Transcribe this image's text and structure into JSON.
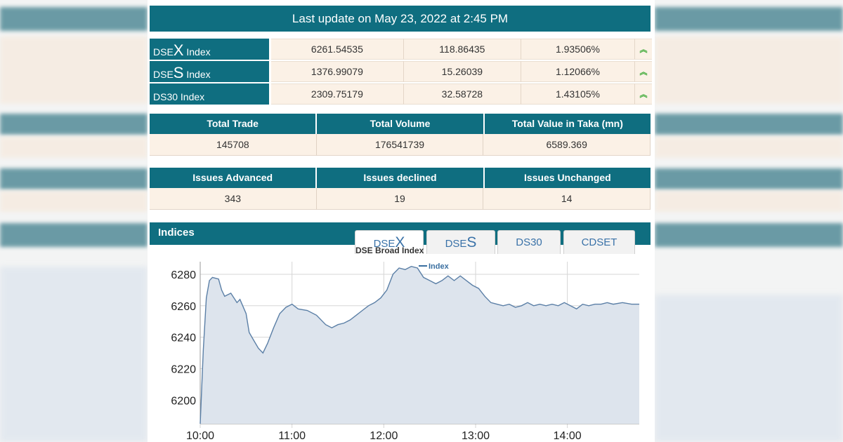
{
  "header": {
    "title": "Last update on May 23, 2022 at 2:45 PM"
  },
  "indices": [
    {
      "name_prefix": "DSE",
      "name_big": "X",
      "name_suffix": " Index",
      "value": "6261.54535",
      "change": "118.86435",
      "percent": "1.93506%",
      "trend_icon": "double-chevron-up-icon"
    },
    {
      "name_prefix": "DSE",
      "name_big": "S",
      "name_suffix": " Index",
      "value": "1376.99079",
      "change": "15.26039",
      "percent": "1.12066%",
      "trend_icon": "double-chevron-up-icon"
    },
    {
      "name_prefix": "DS30 Index",
      "name_big": "",
      "name_suffix": "",
      "value": "2309.75179",
      "change": "32.58728",
      "percent": "1.43105%",
      "trend_icon": "double-chevron-up-icon"
    }
  ],
  "trade_stats": {
    "headers": [
      "Total Trade",
      "Total Volume",
      "Total Value in Taka (mn)"
    ],
    "values": [
      "145708",
      "176541739",
      "6589.369"
    ]
  },
  "issues": {
    "headers": [
      "Issues Advanced",
      "Issues declined",
      "Issues Unchanged"
    ],
    "values": [
      "343",
      "19",
      "14"
    ]
  },
  "indices_section": {
    "title": "Indices",
    "tabs": [
      {
        "prefix": "DSE",
        "big": "X",
        "active": true
      },
      {
        "prefix": "DSE",
        "big": "S",
        "active": false
      },
      {
        "prefix": "DS30",
        "big": "",
        "active": false
      },
      {
        "prefix": "CDSET",
        "big": "",
        "active": false
      }
    ]
  },
  "colors": {
    "header_teal": "#0f6e80",
    "cell_bg": "#fbf1e6",
    "up_green": "#39a833",
    "line": "#5b7fa6",
    "area": "#dde4ed"
  },
  "chart_data": {
    "type": "area",
    "title": "DSE Broad Index",
    "legend": [
      "Index"
    ],
    "legend_position": "top-center",
    "xlabel": "",
    "ylabel": "",
    "x_ticks": [
      "10:00",
      "11:00",
      "12:00",
      "13:00",
      "14:00"
    ],
    "y_ticks": [
      6200,
      6220,
      6240,
      6260,
      6280
    ],
    "ylim": [
      6185,
      6288
    ],
    "xlim_minutes": [
      600,
      887
    ],
    "grid": true,
    "series": [
      {
        "name": "Index",
        "points": [
          [
            600,
            6185
          ],
          [
            602,
            6232
          ],
          [
            604,
            6265
          ],
          [
            606,
            6276
          ],
          [
            608,
            6278
          ],
          [
            612,
            6277
          ],
          [
            614,
            6270
          ],
          [
            616,
            6266
          ],
          [
            620,
            6268
          ],
          [
            624,
            6262
          ],
          [
            626,
            6264
          ],
          [
            630,
            6255
          ],
          [
            632,
            6243
          ],
          [
            635,
            6238
          ],
          [
            638,
            6233
          ],
          [
            641,
            6230
          ],
          [
            644,
            6236
          ],
          [
            648,
            6246
          ],
          [
            652,
            6255
          ],
          [
            656,
            6259
          ],
          [
            660,
            6261
          ],
          [
            664,
            6258
          ],
          [
            670,
            6257
          ],
          [
            676,
            6254
          ],
          [
            682,
            6248
          ],
          [
            686,
            6246
          ],
          [
            690,
            6248
          ],
          [
            694,
            6249
          ],
          [
            698,
            6251
          ],
          [
            702,
            6254
          ],
          [
            706,
            6257
          ],
          [
            710,
            6260
          ],
          [
            714,
            6262
          ],
          [
            718,
            6265
          ],
          [
            722,
            6270
          ],
          [
            726,
            6280
          ],
          [
            730,
            6284
          ],
          [
            734,
            6283
          ],
          [
            738,
            6285
          ],
          [
            742,
            6284
          ],
          [
            746,
            6278
          ],
          [
            750,
            6276
          ],
          [
            754,
            6274
          ],
          [
            758,
            6276
          ],
          [
            762,
            6279
          ],
          [
            766,
            6276
          ],
          [
            770,
            6279
          ],
          [
            774,
            6276
          ],
          [
            778,
            6273
          ],
          [
            782,
            6271
          ],
          [
            786,
            6266
          ],
          [
            790,
            6262
          ],
          [
            794,
            6261
          ],
          [
            798,
            6260
          ],
          [
            802,
            6261
          ],
          [
            806,
            6259
          ],
          [
            810,
            6260
          ],
          [
            814,
            6262
          ],
          [
            818,
            6260
          ],
          [
            822,
            6261
          ],
          [
            826,
            6260
          ],
          [
            830,
            6261
          ],
          [
            834,
            6260
          ],
          [
            838,
            6262
          ],
          [
            842,
            6260
          ],
          [
            846,
            6258
          ],
          [
            850,
            6261
          ],
          [
            854,
            6260
          ],
          [
            858,
            6261
          ],
          [
            862,
            6261
          ],
          [
            866,
            6262
          ],
          [
            870,
            6261
          ],
          [
            876,
            6262
          ],
          [
            882,
            6261
          ],
          [
            887,
            6261
          ]
        ]
      }
    ]
  }
}
